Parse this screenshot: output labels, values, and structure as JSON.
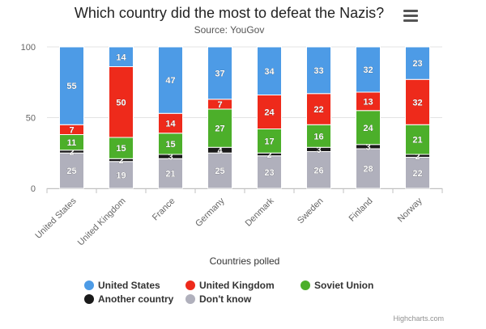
{
  "chart_data": {
    "type": "bar",
    "stacked": true,
    "title": "Which country did the most to defeat the Nazis?",
    "subtitle": "Source: YouGov",
    "xlabel": "Countries polled",
    "ylabel": "",
    "ylim": [
      0,
      100
    ],
    "yticks": [
      0,
      50,
      100
    ],
    "grid": true,
    "legend_position": "bottom",
    "categories": [
      "United States",
      "United Kingdom",
      "France",
      "Germany",
      "Denmark",
      "Sweden",
      "Finland",
      "Norway"
    ],
    "series": [
      {
        "name": "Don't know",
        "color": "#b0b0bc",
        "values": [
          25,
          19,
          21,
          25,
          23,
          26,
          28,
          22
        ]
      },
      {
        "name": "Another country",
        "color": "#1a1a1a",
        "values": [
          2,
          2,
          3,
          4,
          2,
          3,
          3,
          2
        ]
      },
      {
        "name": "Soviet Union",
        "color": "#4caf2a",
        "values": [
          11,
          15,
          15,
          27,
          17,
          16,
          24,
          21
        ]
      },
      {
        "name": "United Kingdom",
        "color": "#ee2a1b",
        "values": [
          7,
          50,
          14,
          7,
          24,
          22,
          13,
          32
        ]
      },
      {
        "name": "United States",
        "color": "#4d9be6",
        "values": [
          55,
          14,
          47,
          37,
          34,
          33,
          32,
          23
        ]
      }
    ],
    "legend_order": [
      "United States",
      "United Kingdom",
      "Soviet Union",
      "Another country",
      "Don't know"
    ]
  },
  "credits": "Highcharts.com",
  "menu_icon": "hamburger-menu-icon"
}
